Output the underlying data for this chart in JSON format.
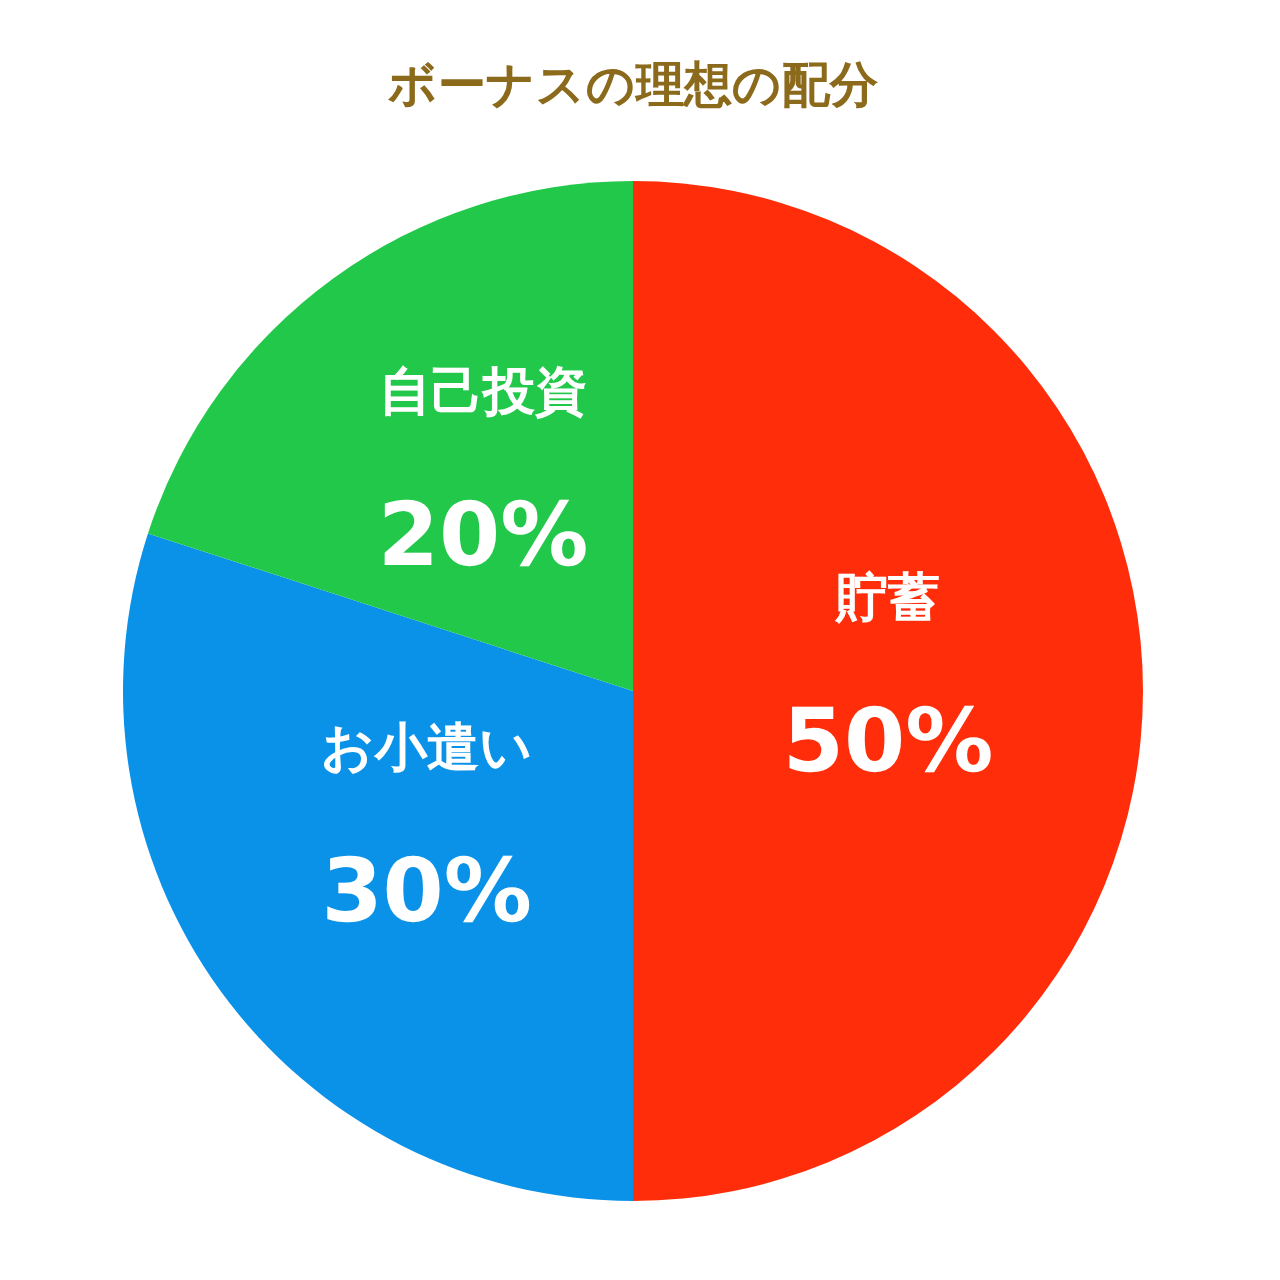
{
  "chart_data": {
    "type": "pie",
    "title": "ボーナスの理想の配分",
    "categories": [
      "貯蓄",
      "お小遣い",
      "自己投資"
    ],
    "values": [
      50,
      30,
      20
    ],
    "colors": [
      "#ff2d0a",
      "#0a92e8",
      "#22c84a"
    ],
    "value_labels": [
      "50%",
      "30%",
      "20%"
    ]
  }
}
